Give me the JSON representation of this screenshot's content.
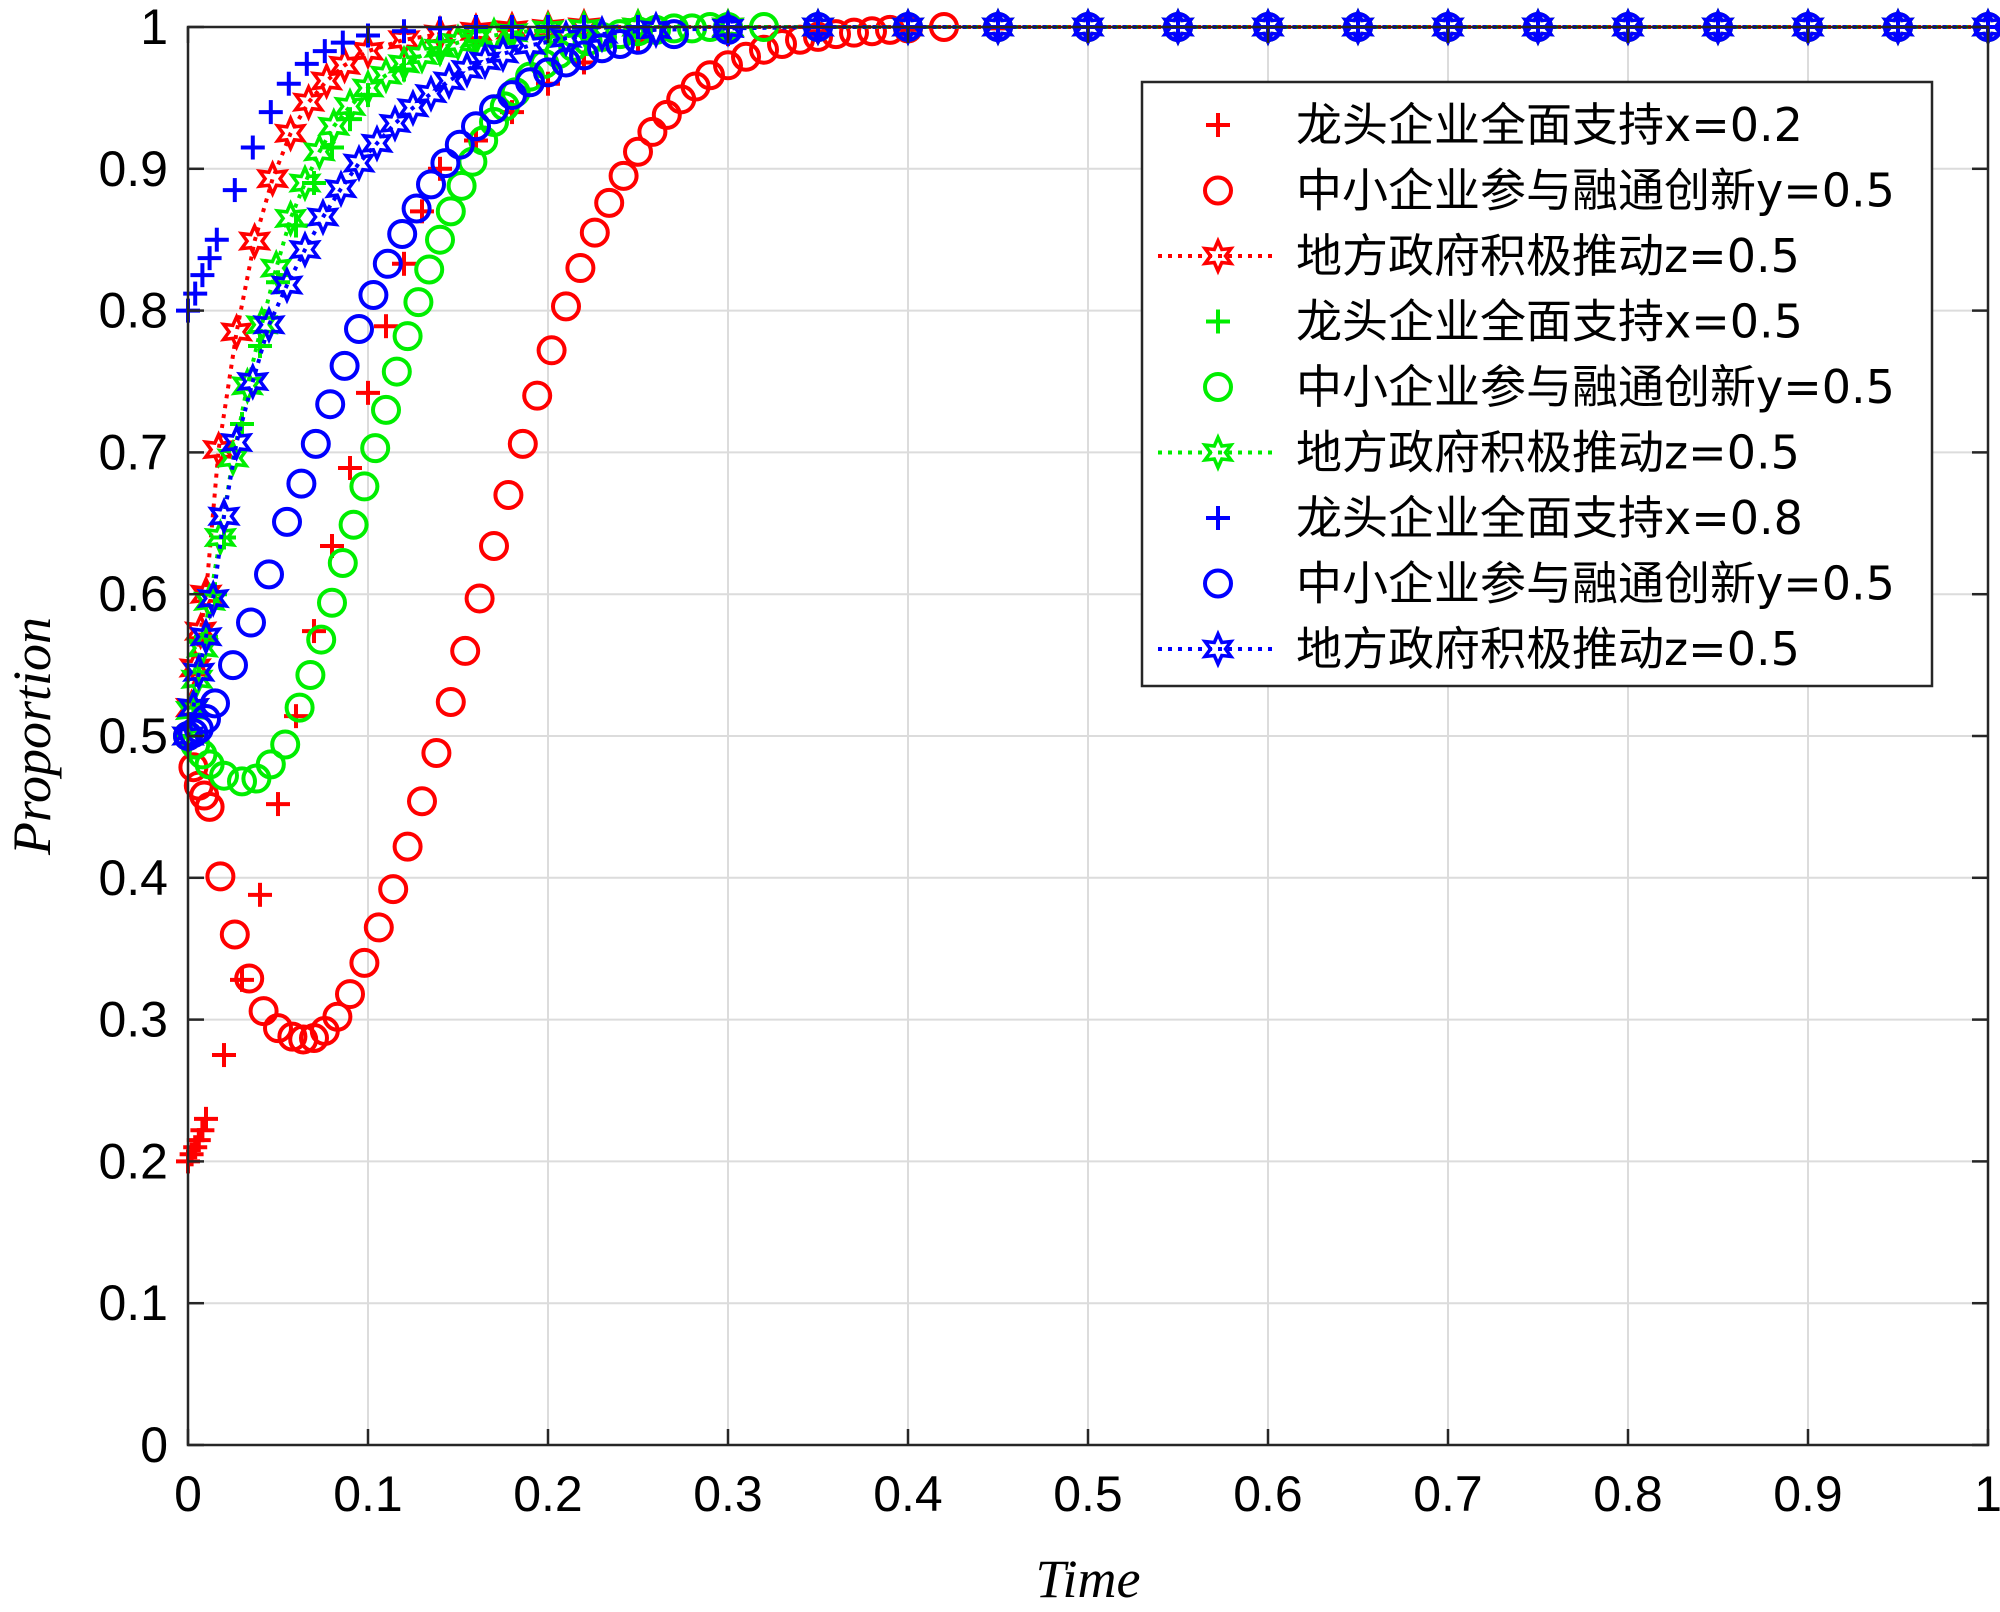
{
  "chart_data": {
    "type": "scatter",
    "title": "",
    "xlabel": "Time",
    "ylabel": "Proportion",
    "xlim": [
      0,
      1
    ],
    "ylim": [
      0,
      1
    ],
    "grid": true,
    "legend_position": "top-right",
    "x_ticks": [
      "0",
      "0.1",
      "0.2",
      "0.3",
      "0.4",
      "0.5",
      "0.6",
      "0.7",
      "0.8",
      "0.9",
      "1"
    ],
    "y_ticks": [
      "0",
      "0.1",
      "0.2",
      "0.3",
      "0.4",
      "0.5",
      "0.6",
      "0.7",
      "0.8",
      "0.9",
      "1"
    ],
    "colors": {
      "red": "#ff0000",
      "green": "#00ee00",
      "blue": "#0000ff"
    },
    "series": [
      {
        "name": "龙头企业全面支持x=0.2",
        "color": "#ff0000",
        "marker": "plus",
        "line": "none",
        "x": [
          0,
          0.002,
          0.004,
          0.006,
          0.008,
          0.01,
          0.02,
          0.03,
          0.04,
          0.05,
          0.06,
          0.07,
          0.08,
          0.09,
          0.1,
          0.11,
          0.12,
          0.13,
          0.14,
          0.16,
          0.18,
          0.2,
          0.22,
          0.25,
          0.3,
          0.35,
          0.4,
          0.45,
          0.5,
          0.55,
          0.6,
          0.65,
          0.7,
          0.75,
          0.8,
          0.85,
          0.9,
          0.95,
          1.0
        ],
        "y": [
          0.2,
          0.205,
          0.21,
          0.215,
          0.222,
          0.23,
          0.275,
          0.328,
          0.388,
          0.452,
          0.514,
          0.574,
          0.634,
          0.689,
          0.742,
          0.789,
          0.833,
          0.87,
          0.9,
          0.92,
          0.94,
          0.96,
          0.975,
          0.99,
          0.995,
          0.997,
          0.998,
          0.999,
          1.0,
          1.0,
          1.0,
          1.0,
          1.0,
          1.0,
          1.0,
          1.0,
          1.0,
          1.0,
          1.0
        ]
      },
      {
        "name": "中小企业参与融通创新y=0.5",
        "color": "#ff0000",
        "marker": "circle",
        "line": "none",
        "x": [
          0,
          0.003,
          0.006,
          0.009,
          0.012,
          0.018,
          0.026,
          0.034,
          0.042,
          0.05,
          0.058,
          0.064,
          0.07,
          0.076,
          0.083,
          0.09,
          0.098,
          0.106,
          0.114,
          0.122,
          0.13,
          0.138,
          0.146,
          0.154,
          0.162,
          0.17,
          0.178,
          0.186,
          0.194,
          0.202,
          0.21,
          0.218,
          0.226,
          0.234,
          0.242,
          0.25,
          0.258,
          0.266,
          0.274,
          0.282,
          0.29,
          0.3,
          0.31,
          0.32,
          0.33,
          0.34,
          0.35,
          0.36,
          0.37,
          0.38,
          0.39,
          0.4,
          0.42,
          0.45,
          0.5,
          0.55,
          0.6,
          0.65,
          0.7,
          0.75,
          0.8,
          0.85,
          0.9,
          0.95,
          1.0
        ],
        "y": [
          0.5,
          0.478,
          0.465,
          0.458,
          0.45,
          0.401,
          0.36,
          0.329,
          0.306,
          0.294,
          0.288,
          0.286,
          0.287,
          0.292,
          0.302,
          0.318,
          0.34,
          0.365,
          0.392,
          0.422,
          0.454,
          0.488,
          0.524,
          0.56,
          0.597,
          0.634,
          0.67,
          0.706,
          0.74,
          0.772,
          0.803,
          0.83,
          0.855,
          0.876,
          0.895,
          0.912,
          0.926,
          0.938,
          0.949,
          0.958,
          0.966,
          0.973,
          0.979,
          0.984,
          0.988,
          0.991,
          0.993,
          0.995,
          0.996,
          0.997,
          0.998,
          0.999,
          1.0,
          1.0,
          1.0,
          1.0,
          1.0,
          1.0,
          1.0,
          1.0,
          1.0,
          1.0,
          1.0,
          1.0,
          1.0
        ]
      },
      {
        "name": "地方政府积极推动z=0.5",
        "color": "#ff0000",
        "marker": "hexagram",
        "line": "dotted",
        "x": [
          0,
          0.002,
          0.004,
          0.007,
          0.01,
          0.017,
          0.027,
          0.037,
          0.047,
          0.057,
          0.067,
          0.077,
          0.087,
          0.1,
          0.12,
          0.14,
          0.16,
          0.18,
          0.2,
          0.22,
          0.25,
          0.3,
          0.35,
          0.4,
          0.45,
          0.5,
          0.55,
          0.6,
          0.65,
          0.7,
          0.75,
          0.8,
          0.85,
          0.9,
          0.95,
          1.0
        ],
        "y": [
          0.5,
          0.52,
          0.548,
          0.574,
          0.6,
          0.702,
          0.785,
          0.849,
          0.893,
          0.925,
          0.947,
          0.962,
          0.973,
          0.983,
          0.991,
          0.995,
          0.997,
          0.998,
          0.999,
          1.0,
          1.0,
          1.0,
          1.0,
          1.0,
          1.0,
          1.0,
          1.0,
          1.0,
          1.0,
          1.0,
          1.0,
          1.0,
          1.0,
          1.0,
          1.0,
          1.0
        ]
      },
      {
        "name": "龙头企业全面支持x=0.5",
        "color": "#00ee00",
        "marker": "plus",
        "line": "none",
        "x": [
          0,
          0.003,
          0.006,
          0.01,
          0.015,
          0.02,
          0.03,
          0.04,
          0.05,
          0.06,
          0.07,
          0.08,
          0.09,
          0.1,
          0.12,
          0.14,
          0.16,
          0.18,
          0.2,
          0.22,
          0.25,
          0.3,
          0.35,
          0.4,
          0.45,
          0.5,
          0.55,
          0.6,
          0.65,
          0.7,
          0.75,
          0.8,
          0.85,
          0.9,
          0.95,
          1.0
        ],
        "y": [
          0.5,
          0.52,
          0.545,
          0.57,
          0.6,
          0.64,
          0.72,
          0.775,
          0.82,
          0.86,
          0.89,
          0.915,
          0.935,
          0.952,
          0.97,
          0.982,
          0.99,
          0.994,
          0.997,
          0.998,
          0.999,
          1.0,
          1.0,
          1.0,
          1.0,
          1.0,
          1.0,
          1.0,
          1.0,
          1.0,
          1.0,
          1.0,
          1.0,
          1.0,
          1.0,
          1.0
        ]
      },
      {
        "name": "中小企业参与融通创新y=0.5",
        "color": "#00ee00",
        "marker": "circle",
        "line": "none",
        "x": [
          0,
          0.004,
          0.008,
          0.012,
          0.02,
          0.03,
          0.038,
          0.046,
          0.054,
          0.062,
          0.068,
          0.074,
          0.08,
          0.086,
          0.092,
          0.098,
          0.104,
          0.11,
          0.116,
          0.122,
          0.128,
          0.134,
          0.14,
          0.146,
          0.152,
          0.158,
          0.164,
          0.17,
          0.176,
          0.182,
          0.19,
          0.198,
          0.206,
          0.214,
          0.222,
          0.23,
          0.24,
          0.25,
          0.26,
          0.27,
          0.28,
          0.29,
          0.3,
          0.32,
          0.35,
          0.4,
          0.45,
          0.5,
          0.55,
          0.6,
          0.65,
          0.7,
          0.75,
          0.8,
          0.85,
          0.9,
          0.95,
          1.0
        ],
        "y": [
          0.5,
          0.494,
          0.487,
          0.48,
          0.472,
          0.468,
          0.47,
          0.48,
          0.494,
          0.52,
          0.543,
          0.568,
          0.594,
          0.622,
          0.649,
          0.676,
          0.703,
          0.73,
          0.757,
          0.782,
          0.806,
          0.829,
          0.85,
          0.87,
          0.888,
          0.905,
          0.92,
          0.933,
          0.944,
          0.954,
          0.965,
          0.974,
          0.981,
          0.986,
          0.99,
          0.993,
          0.995,
          0.997,
          0.998,
          0.999,
          0.999,
          1.0,
          1.0,
          1.0,
          1.0,
          1.0,
          1.0,
          1.0,
          1.0,
          1.0,
          1.0,
          1.0,
          1.0,
          1.0,
          1.0,
          1.0,
          1.0,
          1.0
        ]
      },
      {
        "name": "地方政府积极推动z=0.5",
        "color": "#00ee00",
        "marker": "hexagram",
        "line": "dotted",
        "x": [
          0,
          0.002,
          0.005,
          0.008,
          0.012,
          0.018,
          0.025,
          0.033,
          0.041,
          0.049,
          0.057,
          0.065,
          0.073,
          0.081,
          0.09,
          0.1,
          0.11,
          0.12,
          0.13,
          0.14,
          0.15,
          0.16,
          0.17,
          0.18,
          0.2,
          0.22,
          0.25,
          0.3,
          0.35,
          0.4,
          0.45,
          0.5,
          0.55,
          0.6,
          0.65,
          0.7,
          0.75,
          0.8,
          0.85,
          0.9,
          0.95,
          1.0
        ],
        "y": [
          0.5,
          0.518,
          0.54,
          0.562,
          0.595,
          0.64,
          0.696,
          0.747,
          0.79,
          0.83,
          0.865,
          0.89,
          0.912,
          0.93,
          0.944,
          0.957,
          0.966,
          0.974,
          0.98,
          0.985,
          0.989,
          0.992,
          0.994,
          0.996,
          0.998,
          0.999,
          1.0,
          1.0,
          1.0,
          1.0,
          1.0,
          1.0,
          1.0,
          1.0,
          1.0,
          1.0,
          1.0,
          1.0,
          1.0,
          1.0,
          1.0,
          1.0
        ]
      },
      {
        "name": "龙头企业全面支持x=0.8",
        "color": "#0000ff",
        "marker": "plus",
        "line": "none",
        "x": [
          0,
          0.004,
          0.008,
          0.012,
          0.016,
          0.026,
          0.036,
          0.046,
          0.056,
          0.066,
          0.076,
          0.086,
          0.1,
          0.12,
          0.14,
          0.16,
          0.18,
          0.2,
          0.22,
          0.25,
          0.3,
          0.35,
          0.4,
          0.45,
          0.5,
          0.55,
          0.6,
          0.65,
          0.7,
          0.75,
          0.8,
          0.85,
          0.9,
          0.95,
          1.0
        ],
        "y": [
          0.8,
          0.812,
          0.825,
          0.837,
          0.85,
          0.885,
          0.915,
          0.94,
          0.96,
          0.974,
          0.983,
          0.989,
          0.994,
          0.997,
          0.999,
          1.0,
          1.0,
          1.0,
          1.0,
          1.0,
          1.0,
          1.0,
          1.0,
          1.0,
          1.0,
          1.0,
          1.0,
          1.0,
          1.0,
          1.0,
          1.0,
          1.0,
          1.0,
          1.0,
          1.0
        ]
      },
      {
        "name": "中小企业参与融通创新y=0.5",
        "color": "#0000ff",
        "marker": "circle",
        "line": "none",
        "x": [
          0,
          0.003,
          0.006,
          0.01,
          0.015,
          0.025,
          0.035,
          0.045,
          0.055,
          0.063,
          0.071,
          0.079,
          0.087,
          0.095,
          0.103,
          0.111,
          0.119,
          0.127,
          0.135,
          0.143,
          0.151,
          0.16,
          0.17,
          0.18,
          0.19,
          0.2,
          0.21,
          0.22,
          0.23,
          0.24,
          0.25,
          0.27,
          0.3,
          0.35,
          0.4,
          0.45,
          0.5,
          0.55,
          0.6,
          0.65,
          0.7,
          0.75,
          0.8,
          0.85,
          0.9,
          0.95,
          1.0
        ],
        "y": [
          0.5,
          0.502,
          0.505,
          0.512,
          0.523,
          0.55,
          0.58,
          0.614,
          0.651,
          0.678,
          0.706,
          0.734,
          0.761,
          0.787,
          0.811,
          0.833,
          0.854,
          0.872,
          0.889,
          0.904,
          0.917,
          0.93,
          0.942,
          0.952,
          0.961,
          0.968,
          0.975,
          0.98,
          0.985,
          0.988,
          0.991,
          0.995,
          0.998,
          1.0,
          1.0,
          1.0,
          1.0,
          1.0,
          1.0,
          1.0,
          1.0,
          1.0,
          1.0,
          1.0,
          1.0,
          1.0,
          1.0
        ]
      },
      {
        "name": "地方政府积极推动z=0.5",
        "color": "#0000ff",
        "marker": "hexagram",
        "line": "dotted",
        "x": [
          0,
          0.003,
          0.006,
          0.01,
          0.014,
          0.02,
          0.027,
          0.036,
          0.045,
          0.055,
          0.065,
          0.075,
          0.085,
          0.095,
          0.105,
          0.115,
          0.125,
          0.135,
          0.145,
          0.155,
          0.165,
          0.175,
          0.19,
          0.21,
          0.23,
          0.26,
          0.3,
          0.35,
          0.4,
          0.45,
          0.5,
          0.55,
          0.6,
          0.65,
          0.7,
          0.75,
          0.8,
          0.85,
          0.9,
          0.95,
          1.0
        ],
        "y": [
          0.5,
          0.52,
          0.545,
          0.57,
          0.597,
          0.655,
          0.707,
          0.75,
          0.79,
          0.818,
          0.843,
          0.866,
          0.886,
          0.904,
          0.918,
          0.932,
          0.943,
          0.953,
          0.962,
          0.97,
          0.976,
          0.981,
          0.987,
          0.992,
          0.995,
          0.998,
          0.999,
          1.0,
          1.0,
          1.0,
          1.0,
          1.0,
          1.0,
          1.0,
          1.0,
          1.0,
          1.0,
          1.0,
          1.0,
          1.0,
          1.0
        ]
      }
    ]
  }
}
